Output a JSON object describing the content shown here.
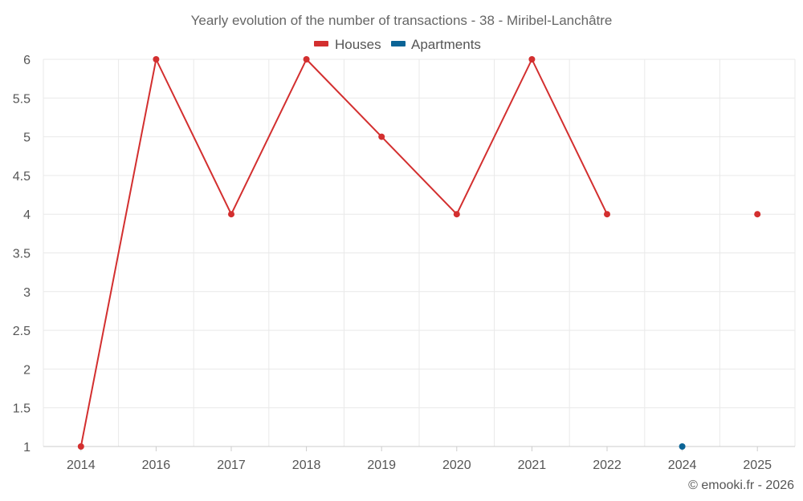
{
  "chart_data": {
    "type": "line",
    "title": "Yearly evolution of the number of transactions - 38 - Miribel-Lanchâtre",
    "categories": [
      "2014",
      "2016",
      "2017",
      "2018",
      "2019",
      "2020",
      "2021",
      "2022",
      "2024",
      "2025"
    ],
    "series": [
      {
        "name": "Houses",
        "color": "#d32f2f",
        "values": [
          1,
          6,
          4,
          6,
          5,
          4,
          6,
          4,
          null,
          4
        ]
      },
      {
        "name": "Apartments",
        "color": "#0b6496",
        "values": [
          null,
          null,
          null,
          null,
          null,
          null,
          null,
          null,
          1,
          null
        ]
      }
    ],
    "ylim": [
      1,
      6
    ],
    "yticks": [
      "1",
      "1.5",
      "2",
      "2.5",
      "3",
      "3.5",
      "4",
      "4.5",
      "5",
      "5.5",
      "6"
    ],
    "xlabel": "",
    "ylabel": "",
    "grid": true,
    "legend_position": "top-center"
  },
  "credit": "© emooki.fr - 2026"
}
